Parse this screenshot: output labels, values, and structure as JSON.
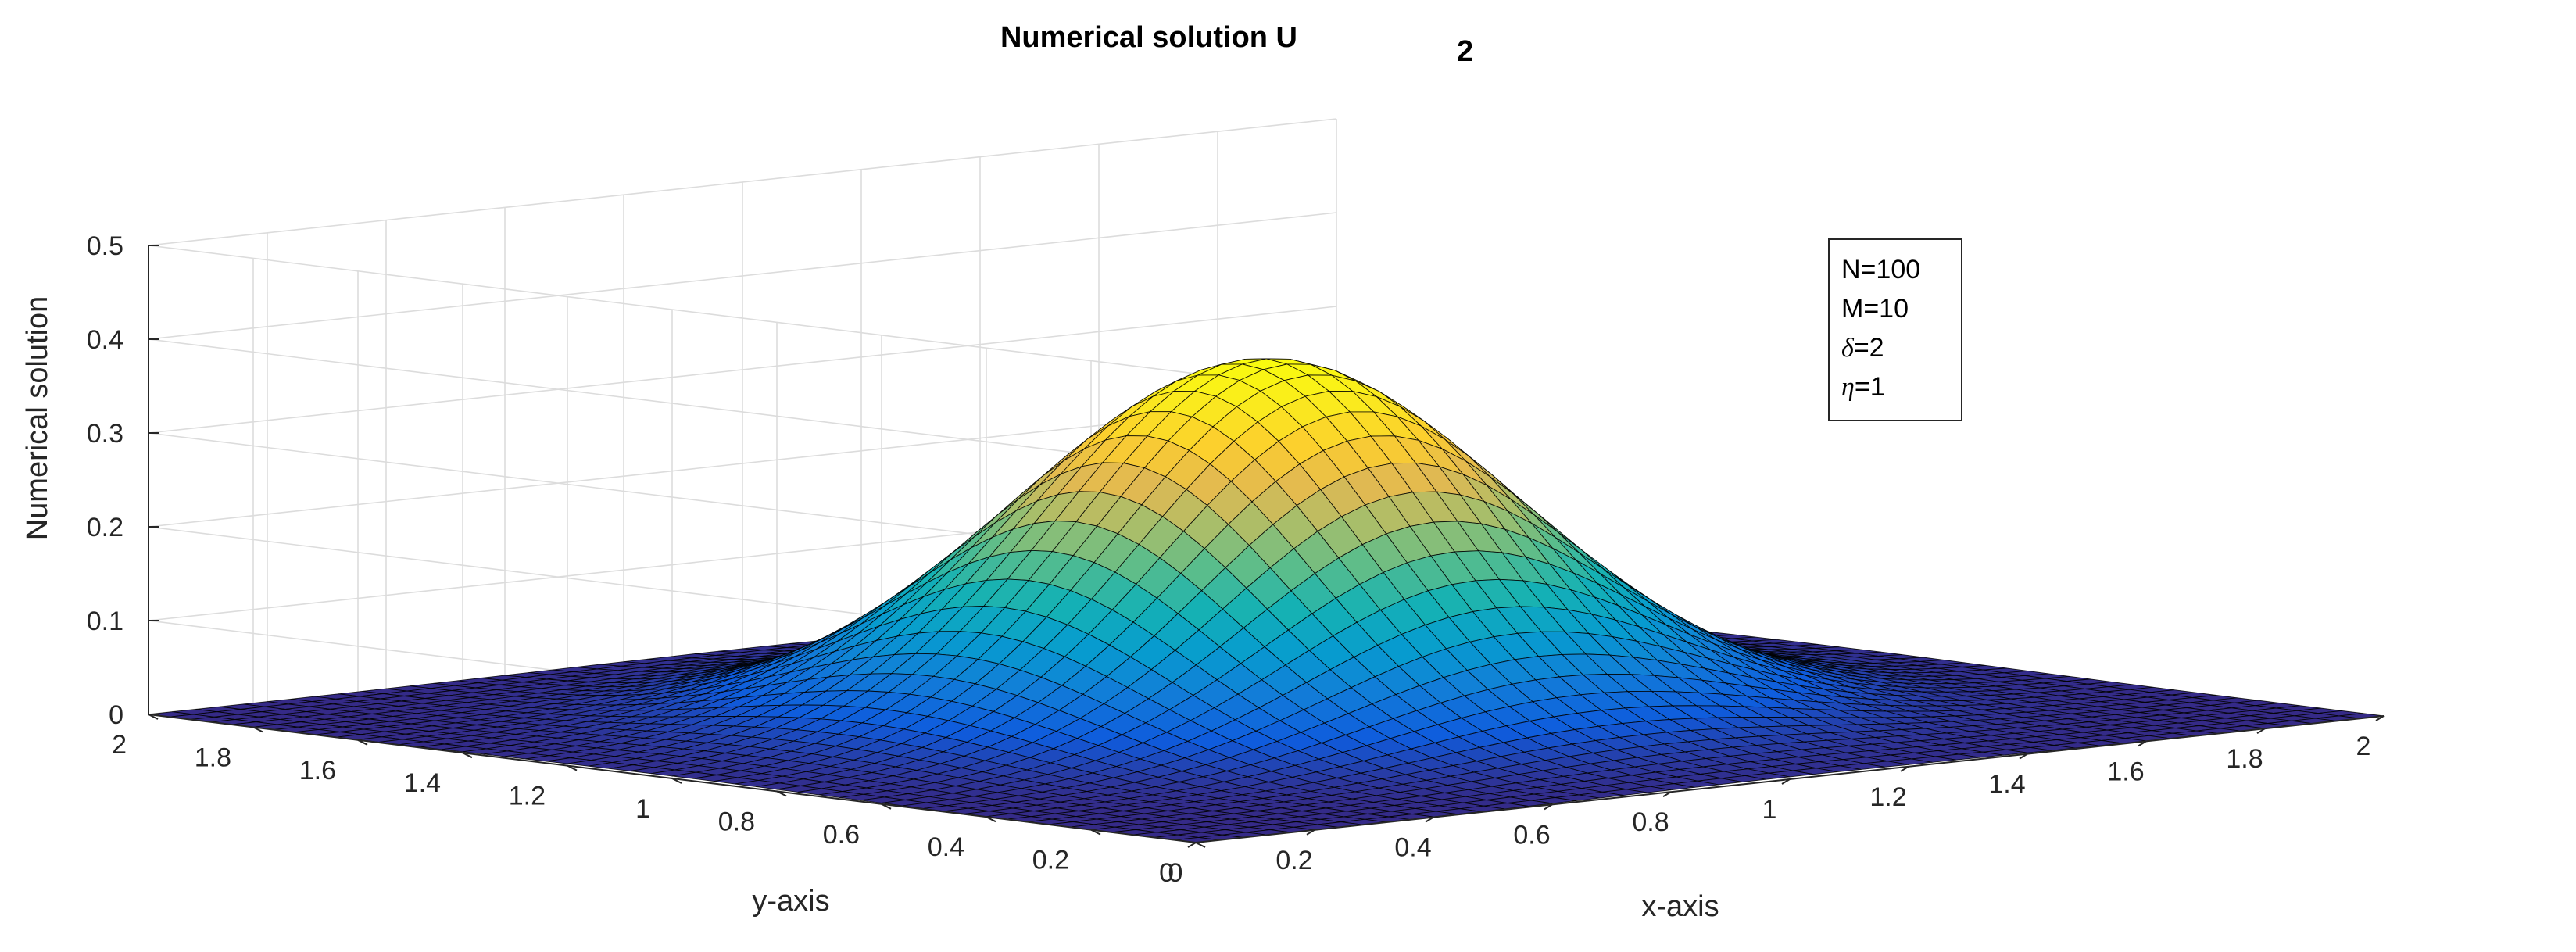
{
  "chart_data": {
    "type": "surface",
    "title": "Numerical solution U",
    "title_subscript": "2",
    "xlabel": "x-axis",
    "ylabel": "y-axis",
    "zlabel": "Numerical solution",
    "xlim": [
      0,
      2
    ],
    "ylim": [
      0,
      2
    ],
    "zlim": [
      0,
      0.5
    ],
    "x_ticks": [
      "0",
      "0.2",
      "0.4",
      "0.6",
      "0.8",
      "1",
      "1.2",
      "1.4",
      "1.6",
      "1.8",
      "2"
    ],
    "y_ticks": [
      "0",
      "0.2",
      "0.4",
      "0.6",
      "0.8",
      "1",
      "1.2",
      "1.4",
      "1.6",
      "1.8",
      "2"
    ],
    "z_ticks": [
      "0",
      "0.1",
      "0.2",
      "0.3",
      "0.4",
      "0.5"
    ],
    "grid": true,
    "colormap": "parula",
    "surface": {
      "description_function": "z = 0.38 * exp(-((x-1)^2 + (y-1)^2) / 0.2)",
      "peak": {
        "x": 1,
        "y": 1,
        "z": 0.38
      },
      "amplitude": 0.38,
      "width_param": 0.2,
      "grid_n": 50
    },
    "legend": {
      "placement": "top-right",
      "lines": [
        {
          "symbol": "",
          "text": "N=100"
        },
        {
          "symbol": "",
          "text": "M=10"
        },
        {
          "symbol": "δ",
          "text": "=2"
        },
        {
          "symbol": "η",
          "text": "=1"
        }
      ]
    }
  }
}
